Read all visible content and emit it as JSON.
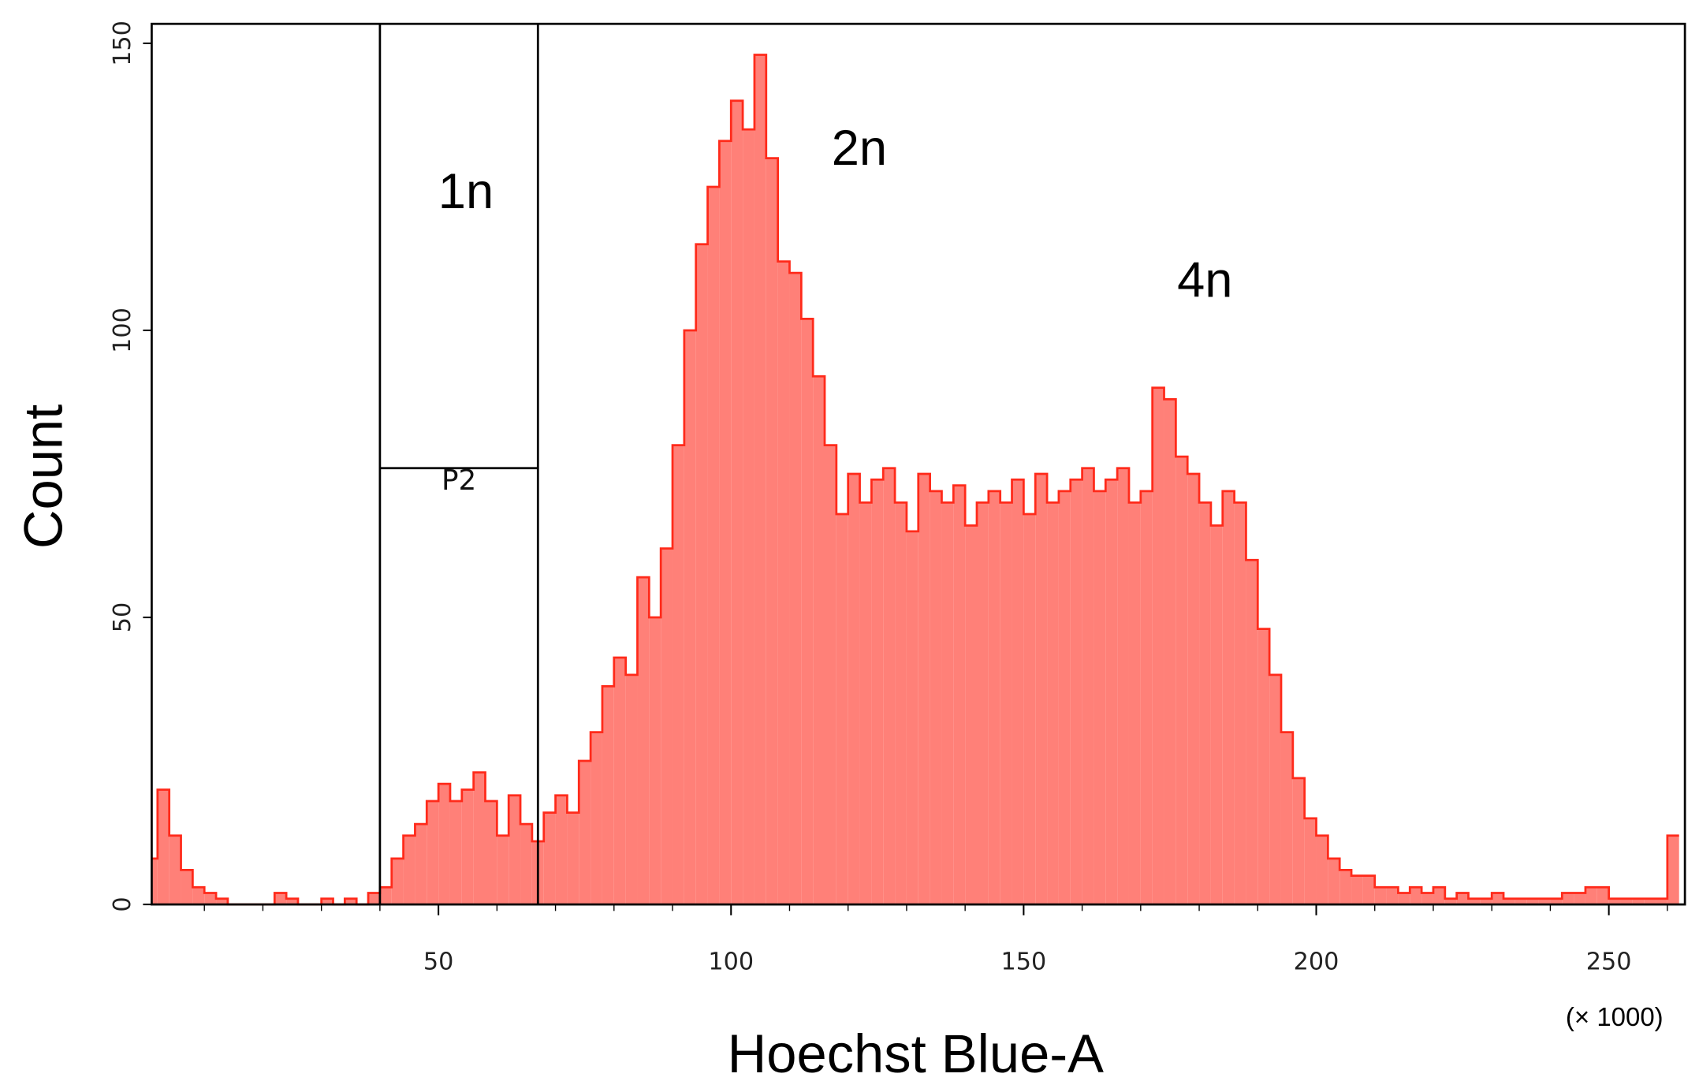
{
  "chart_data": {
    "type": "histogram",
    "x_label": "Hoechst Blue-A",
    "y_label": "Count",
    "x_unit_label": "(× 1000)",
    "color": "#ff8078",
    "edge_color": "#ff2a1a",
    "xlim": [
      1,
      263
    ],
    "ylim": [
      0,
      150
    ],
    "xticks": [
      50,
      100,
      150,
      200,
      250
    ],
    "xminorticks": [
      10,
      20,
      30,
      40,
      60,
      70,
      80,
      90,
      110,
      120,
      130,
      140,
      160,
      170,
      180,
      190,
      210,
      220,
      230,
      240,
      260
    ],
    "yticks": [
      0,
      50,
      100,
      150
    ],
    "bins": [
      0,
      2,
      4,
      6,
      8,
      10,
      12,
      14,
      16,
      18,
      20,
      22,
      24,
      26,
      28,
      30,
      32,
      34,
      36,
      38,
      40,
      42,
      44,
      46,
      48,
      50,
      52,
      54,
      56,
      58,
      60,
      62,
      64,
      66,
      68,
      70,
      72,
      74,
      76,
      78,
      80,
      82,
      84,
      86,
      88,
      90,
      92,
      94,
      96,
      98,
      100,
      102,
      104,
      106,
      108,
      110,
      112,
      114,
      116,
      118,
      120,
      122,
      124,
      126,
      128,
      130,
      132,
      134,
      136,
      138,
      140,
      142,
      144,
      146,
      148,
      150,
      152,
      154,
      156,
      158,
      160,
      162,
      164,
      166,
      168,
      170,
      172,
      174,
      176,
      178,
      180,
      182,
      184,
      186,
      188,
      190,
      192,
      194,
      196,
      198,
      200,
      202,
      204,
      206,
      208,
      210,
      212,
      214,
      216,
      218,
      220,
      222,
      224,
      226,
      228,
      230,
      232,
      234,
      236,
      238,
      240,
      242,
      244,
      246,
      248,
      250,
      252,
      254,
      256,
      258,
      260,
      262
    ],
    "counts": [
      8,
      20,
      12,
      6,
      3,
      2,
      1,
      0,
      0,
      0,
      0,
      2,
      1,
      0,
      0,
      1,
      0,
      1,
      0,
      2,
      3,
      8,
      12,
      14,
      18,
      21,
      18,
      20,
      23,
      18,
      12,
      19,
      14,
      11,
      16,
      19,
      16,
      25,
      30,
      38,
      43,
      40,
      57,
      50,
      62,
      80,
      100,
      115,
      125,
      133,
      140,
      135,
      148,
      130,
      112,
      110,
      102,
      92,
      80,
      68,
      75,
      70,
      74,
      76,
      70,
      65,
      75,
      72,
      70,
      73,
      66,
      70,
      72,
      70,
      74,
      68,
      75,
      70,
      72,
      74,
      76,
      72,
      74,
      76,
      70,
      72,
      90,
      88,
      78,
      75,
      70,
      66,
      72,
      70,
      60,
      48,
      40,
      30,
      22,
      15,
      12,
      8,
      6,
      5,
      5,
      3,
      3,
      2,
      3,
      2,
      3,
      1,
      2,
      1,
      1,
      2,
      1,
      1,
      1,
      1,
      1,
      2,
      2,
      3,
      3,
      1,
      1,
      1,
      1,
      1,
      12
    ],
    "gate": {
      "label": "P2",
      "x": [
        40,
        67
      ],
      "y": 76
    },
    "annotations": [
      "1n",
      "2n",
      "4n"
    ]
  }
}
